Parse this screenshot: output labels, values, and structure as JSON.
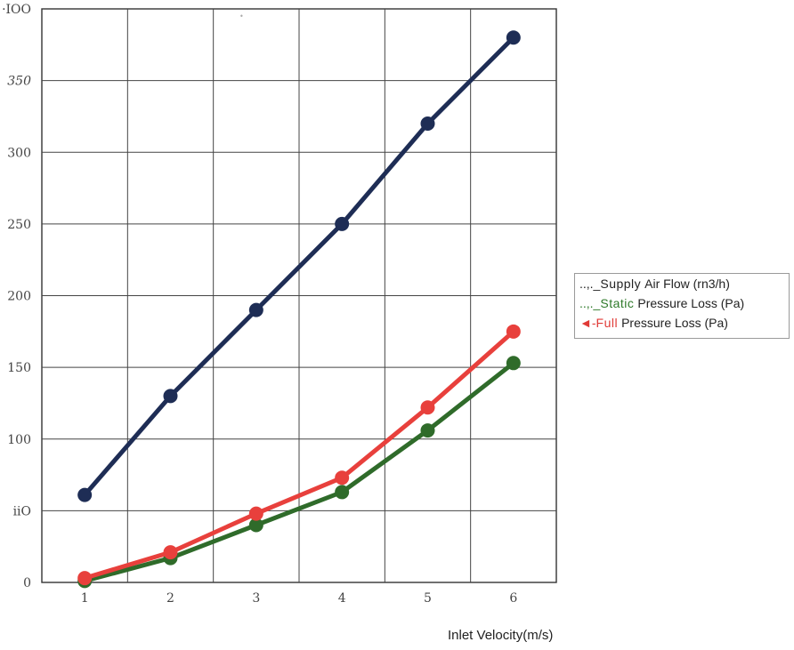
{
  "chart_data": {
    "type": "line",
    "x": [
      1,
      2,
      3,
      4,
      5,
      6
    ],
    "xlabel": "Inlet Velocity(m/s)",
    "ylabel": "",
    "title": "",
    "ylim": [
      0,
      400
    ],
    "xlim": [
      0.5,
      6.5
    ],
    "x_tick_labels": [
      "1",
      "2",
      "3",
      "4",
      "5",
      "6"
    ],
    "y_ticks": [
      0,
      50,
      100,
      150,
      200,
      250,
      300,
      350,
      400
    ],
    "y_tick_labels": [
      "0",
      "iiO",
      "100",
      "150",
      "200",
      "250",
      "300",
      "350",
      "·IOO"
    ],
    "grid": true,
    "legend_position": "right",
    "series": [
      {
        "legend_prefix": "..,._",
        "legend_word": "Supply",
        "legend_rest": "Air Flow (rn3/h)",
        "color": "#1e2d55",
        "word_color": "#222222",
        "values": [
          61,
          130,
          190,
          250,
          320,
          380
        ]
      },
      {
        "legend_prefix": "..,._",
        "legend_word": "Static",
        "legend_rest": "Pressure Loss (Pa)",
        "color": "#2f6b2a",
        "word_color": "#2f7a2a",
        "values": [
          1,
          17,
          40,
          63,
          106,
          153
        ]
      },
      {
        "legend_prefix": "◄-",
        "legend_word": "Full",
        "legend_rest": "Pressure Loss (Pa)",
        "color": "#e8403c",
        "word_color": "#e03a36",
        "values": [
          3,
          21,
          48,
          73,
          122,
          175
        ]
      }
    ]
  }
}
